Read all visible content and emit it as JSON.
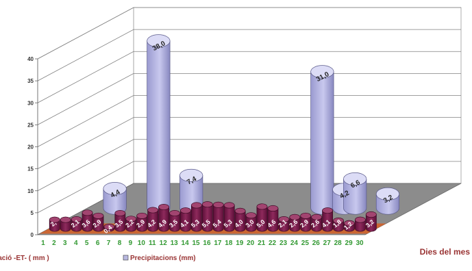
{
  "chart_data": {
    "type": "bar",
    "subtype": "3d-column-depth",
    "x": [
      "1",
      "2",
      "3",
      "4",
      "5",
      "6",
      "7",
      "8",
      "9",
      "10",
      "11",
      "12",
      "13",
      "14",
      "15",
      "16",
      "17",
      "18",
      "19",
      "20",
      "21",
      "22",
      "23",
      "24",
      "25",
      "26",
      "27",
      "28",
      "29",
      "30"
    ],
    "xlabel": "Dies del mes",
    "ylabel": "",
    "ylim": [
      0,
      40
    ],
    "yticks": [
      0,
      5,
      10,
      15,
      20,
      25,
      30,
      35,
      40
    ],
    "grid": true,
    "legend_position": "bottom-left",
    "series": [
      {
        "name": "Evapotranspiració -ET- ( mm )",
        "color": "#cc6633",
        "values": [
          2.0,
          2.0,
          2.1,
          3.6,
          2.9,
          0.4,
          3.5,
          2.2,
          2.9,
          4.2,
          4.9,
          3.5,
          4.1,
          5.3,
          5.5,
          5.4,
          5.3,
          4.0,
          3.0,
          5.0,
          4.6,
          2.1,
          2.6,
          2.9,
          2.6,
          4.1,
          1.8,
          1.2,
          2.0,
          3.2
        ],
        "labels": [
          "2,",
          "",
          "2,1",
          "3,6",
          "2,9",
          "0,4",
          "3,5",
          "2,2",
          "2,9",
          "4,2",
          "4,9",
          "3,5",
          "4,1",
          "5,3",
          "5,5",
          "5,4",
          "5,3",
          "4,0",
          "3,0",
          "5,0",
          "4,6",
          "2,1",
          "2,6",
          "2,9",
          "2,6",
          "4,1",
          "1,8",
          "1,2",
          "",
          "3,2"
        ]
      },
      {
        "name": "Precipitacions (mm)",
        "color": "#b8b8e0",
        "values": [
          0,
          0,
          4.4,
          0,
          0,
          0,
          38.0,
          0,
          0,
          7.4,
          0,
          0,
          0,
          0,
          0,
          0,
          0,
          0,
          0,
          0,
          0,
          31.0,
          0,
          4.2,
          6.6,
          0,
          0,
          3.2,
          0,
          0
        ],
        "labels": [
          "",
          "",
          "4,4",
          "",
          "",
          "",
          "38,0",
          "",
          "",
          "7,4",
          "",
          "",
          "",
          "",
          "",
          "",
          "",
          "",
          "",
          "",
          "",
          "31,0",
          "",
          "4,2",
          "6,6",
          "",
          "",
          "3,2",
          "",
          ""
        ]
      }
    ]
  }
}
